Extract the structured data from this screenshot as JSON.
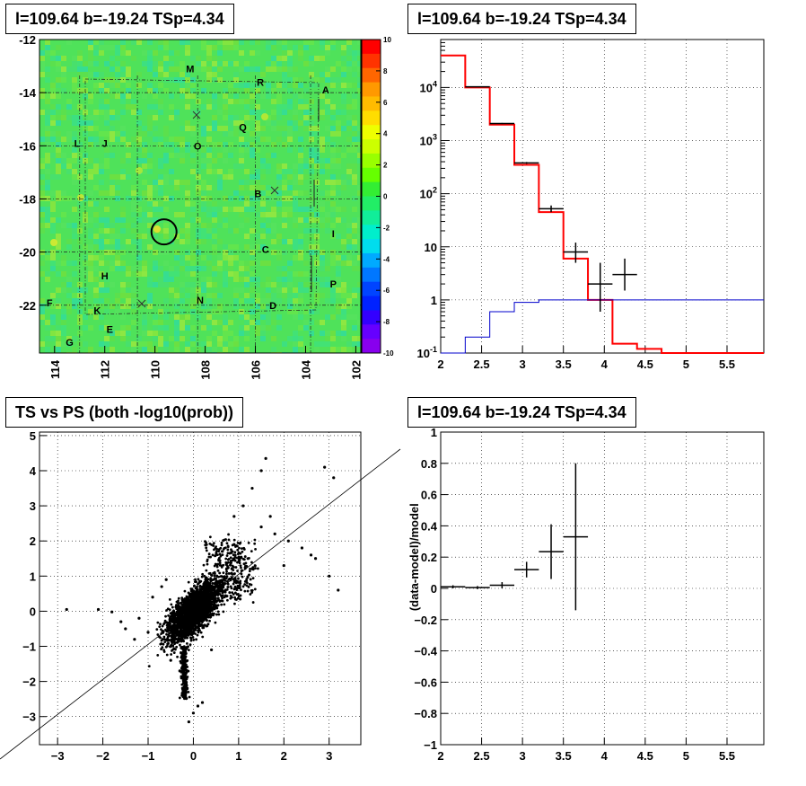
{
  "panels": {
    "skymap_title": "l=109.64 b=-19.24 TSp=4.34",
    "spectrum_title": "l=109.64 b=-19.24 TSp=4.34",
    "scatter_title": "TS vs PS (both -log10(prob))",
    "residual_title": "l=109.64 b=-19.24 TSp=4.34"
  },
  "chart_data": [
    {
      "type": "heatmap",
      "title": "l=109.64 b=-19.24 TSp=4.34",
      "x_ticks": [
        "114",
        "112",
        "110",
        "108",
        "106",
        "104",
        "102"
      ],
      "xlim": [
        114.6,
        101.8
      ],
      "y_ticks": [
        "-12",
        "-14",
        "-16",
        "-18",
        "-20",
        "-22"
      ],
      "ylim": [
        -12,
        -23.8
      ],
      "colorbar": {
        "ticks": [
          "10",
          "8",
          "6",
          "4",
          "2",
          "0",
          "-2",
          "-4",
          "-6",
          "-8",
          "-10"
        ],
        "range": [
          -10,
          10
        ]
      },
      "labels": [
        {
          "text": "M",
          "l": 108.6,
          "b": -13.1
        },
        {
          "text": "R",
          "l": 105.8,
          "b": -13.6
        },
        {
          "text": "A",
          "l": 103.2,
          "b": -13.9
        },
        {
          "text": "Q",
          "l": 106.5,
          "b": -15.3
        },
        {
          "text": "L",
          "l": 113.1,
          "b": -15.9
        },
        {
          "text": "J",
          "l": 112.0,
          "b": -15.9
        },
        {
          "text": "O",
          "l": 108.3,
          "b": -16.0
        },
        {
          "text": "B",
          "l": 105.9,
          "b": -17.8
        },
        {
          "text": "I",
          "l": 102.9,
          "b": -19.3
        },
        {
          "text": "C",
          "l": 105.6,
          "b": -19.9
        },
        {
          "text": "H",
          "l": 112.0,
          "b": -20.9
        },
        {
          "text": "P",
          "l": 102.9,
          "b": -21.2
        },
        {
          "text": "F",
          "l": 114.2,
          "b": -21.9
        },
        {
          "text": "N",
          "l": 108.2,
          "b": -21.8
        },
        {
          "text": "D",
          "l": 105.3,
          "b": -22.0
        },
        {
          "text": "K",
          "l": 112.3,
          "b": -22.2
        },
        {
          "text": "E",
          "l": 111.8,
          "b": -22.9
        },
        {
          "text": "G",
          "l": 113.4,
          "b": -23.4
        }
      ],
      "source_circle": {
        "l": 109.64,
        "b": -19.24
      }
    },
    {
      "type": "line",
      "title": "l=109.64 b=-19.24 TSp=4.34",
      "x_ticks": [
        "2",
        "2.5",
        "3",
        "3.5",
        "4",
        "4.5",
        "5",
        "5.5"
      ],
      "xlim": [
        2,
        5.95
      ],
      "y_scale": "log",
      "y_ticks": [
        "10^4",
        "10^3",
        "10^2",
        "10",
        "1",
        "10^-1"
      ],
      "ylim": [
        0.1,
        80000
      ],
      "bin_edges": [
        2.0,
        2.3,
        2.6,
        2.9,
        3.2,
        3.5,
        3.8,
        4.1,
        4.4,
        4.7,
        5.0,
        5.3,
        5.6,
        5.95
      ],
      "series": [
        {
          "color": "#ff0000",
          "style": "step",
          "values": [
            40000,
            10000,
            2000,
            350,
            45,
            6,
            1,
            0.15,
            0.12,
            0.1,
            0.1,
            0.1,
            0.1
          ]
        },
        {
          "color": "#0000cc",
          "style": "step",
          "values": [
            0.1,
            0.2,
            0.6,
            0.9,
            1,
            1,
            1,
            1,
            1,
            1,
            1,
            1,
            1
          ]
        },
        {
          "color": "#000000",
          "style": "points",
          "points": [
            {
              "x": 2.45,
              "y": 10300,
              "ylo": 10200,
              "yhi": 10400,
              "xerr": 0.15
            },
            {
              "x": 2.75,
              "y": 2100,
              "ylo": 2050,
              "yhi": 2150,
              "xerr": 0.15
            },
            {
              "x": 3.05,
              "y": 380,
              "ylo": 365,
              "yhi": 395,
              "xerr": 0.15
            },
            {
              "x": 3.35,
              "y": 52,
              "ylo": 45,
              "yhi": 60,
              "xerr": 0.15
            },
            {
              "x": 3.65,
              "y": 8,
              "ylo": 5,
              "yhi": 12,
              "xerr": 0.15
            },
            {
              "x": 3.95,
              "y": 2,
              "ylo": 0.6,
              "yhi": 5,
              "xerr": 0.15
            },
            {
              "x": 4.25,
              "y": 3,
              "ylo": 1.5,
              "yhi": 6,
              "xerr": 0.15
            }
          ]
        }
      ]
    },
    {
      "type": "scatter",
      "title": "TS vs PS (both -log10(prob))",
      "x_ticks": [
        "−3",
        "−2",
        "−1",
        "0",
        "1",
        "2",
        "3"
      ],
      "xlim": [
        -3.4,
        3.7
      ],
      "y_ticks": [
        "5",
        "4",
        "3",
        "2",
        "1",
        "0",
        "−1",
        "−2",
        "−3"
      ],
      "ylim": [
        -3.8,
        5.1
      ],
      "line": {
        "x1": -4.4,
        "y1": -4.4,
        "x2": 4.5,
        "y2": 4.5
      },
      "outliers": [
        [
          -2.8,
          0.05
        ],
        [
          -2.1,
          0.05
        ],
        [
          -1.8,
          -0.02
        ],
        [
          -1.6,
          -0.3
        ],
        [
          -1.5,
          -0.5
        ],
        [
          -1.3,
          -0.8
        ],
        [
          -1.2,
          -0.2
        ],
        [
          -1.0,
          -0.6
        ],
        [
          -0.9,
          0.4
        ],
        [
          -0.7,
          0.7
        ],
        [
          -0.6,
          0.9
        ],
        [
          -0.5,
          -1.4
        ],
        [
          0.9,
          2.7
        ],
        [
          1.1,
          3.0
        ],
        [
          1.3,
          3.5
        ],
        [
          1.5,
          4.0
        ],
        [
          1.6,
          4.35
        ],
        [
          1.7,
          2.7
        ],
        [
          2.1,
          2.0
        ],
        [
          2.4,
          1.8
        ],
        [
          2.6,
          1.6
        ],
        [
          2.7,
          1.5
        ],
        [
          2.9,
          4.1
        ],
        [
          3.0,
          1.0
        ],
        [
          3.1,
          3.8
        ],
        [
          3.2,
          0.6
        ],
        [
          0.1,
          -2.7
        ],
        [
          0.0,
          -2.9
        ],
        [
          -0.1,
          -3.15
        ],
        [
          0.2,
          -2.6
        ],
        [
          0.4,
          -1.1
        ],
        [
          1.5,
          2.4
        ],
        [
          1.8,
          2.2
        ],
        [
          2.0,
          1.3
        ],
        [
          -0.3,
          -1.7
        ],
        [
          0.9,
          1.9
        ]
      ]
    },
    {
      "type": "scatter",
      "title": "l=109.64 b=-19.24 TSp=4.34",
      "ylabel": "(data-model)/model",
      "x_ticks": [
        "2",
        "2.5",
        "3",
        "3.5",
        "4",
        "4.5",
        "5",
        "5.5"
      ],
      "xlim": [
        2,
        5.95
      ],
      "y_ticks": [
        "1",
        "0.8",
        "0.6",
        "0.4",
        "0.2",
        "0",
        "−0.2",
        "−0.4",
        "−0.6",
        "−0.8",
        "−1"
      ],
      "ylim": [
        -1,
        1
      ],
      "points": [
        {
          "x": 2.15,
          "y": 0.01,
          "ylo": 0.0,
          "yhi": 0.02,
          "xerr": 0.15
        },
        {
          "x": 2.45,
          "y": 0.005,
          "ylo": -0.005,
          "yhi": 0.015,
          "xerr": 0.15
        },
        {
          "x": 2.75,
          "y": 0.02,
          "ylo": 0.0,
          "yhi": 0.04,
          "xerr": 0.15
        },
        {
          "x": 3.05,
          "y": 0.12,
          "ylo": 0.07,
          "yhi": 0.17,
          "xerr": 0.15
        },
        {
          "x": 3.35,
          "y": 0.235,
          "ylo": 0.06,
          "yhi": 0.41,
          "xerr": 0.15
        },
        {
          "x": 3.65,
          "y": 0.33,
          "ylo": -0.14,
          "yhi": 0.8,
          "xerr": 0.15
        }
      ]
    }
  ]
}
